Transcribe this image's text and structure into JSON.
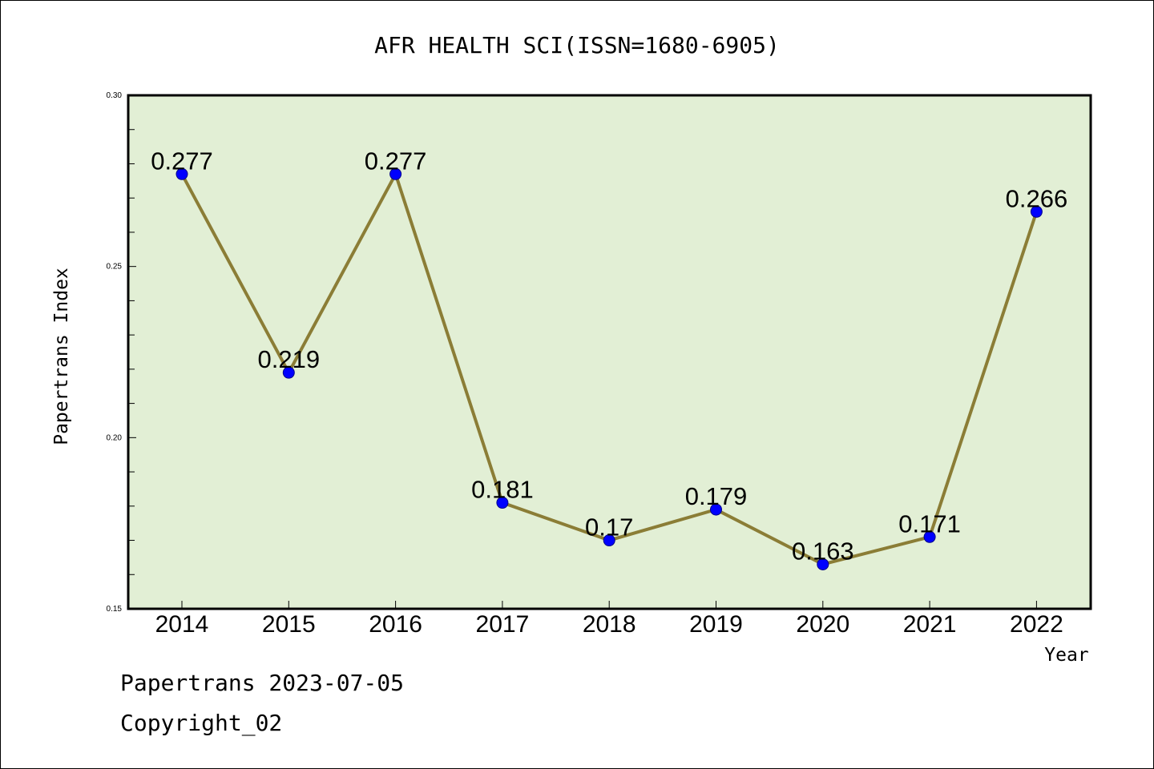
{
  "chart_data": {
    "type": "line",
    "title": "AFR HEALTH SCI(ISSN=1680-6905)",
    "xlabel": "Year",
    "ylabel": "Papertrans Index",
    "ylim": [
      0.15,
      0.3
    ],
    "yticks": [
      "0.15",
      "0.20",
      "0.25",
      "0.30"
    ],
    "categories": [
      "2014",
      "2015",
      "2016",
      "2017",
      "2018",
      "2019",
      "2020",
      "2021",
      "2022"
    ],
    "series": [
      {
        "values": [
          0.277,
          0.219,
          0.277,
          0.181,
          0.17,
          0.179,
          0.163,
          0.171,
          0.266
        ],
        "labels": [
          "0.277",
          "0.219",
          "0.277",
          "0.181",
          "0.17",
          "0.179",
          "0.163",
          "0.171",
          "0.266"
        ]
      }
    ],
    "grid": false,
    "colors": {
      "plot_background": "#e2efd5",
      "line": "#8b7d36",
      "marker": "#0000ff"
    }
  },
  "footer": {
    "line1": "Papertrans 2023-07-05",
    "line2": "Copyright_02"
  }
}
